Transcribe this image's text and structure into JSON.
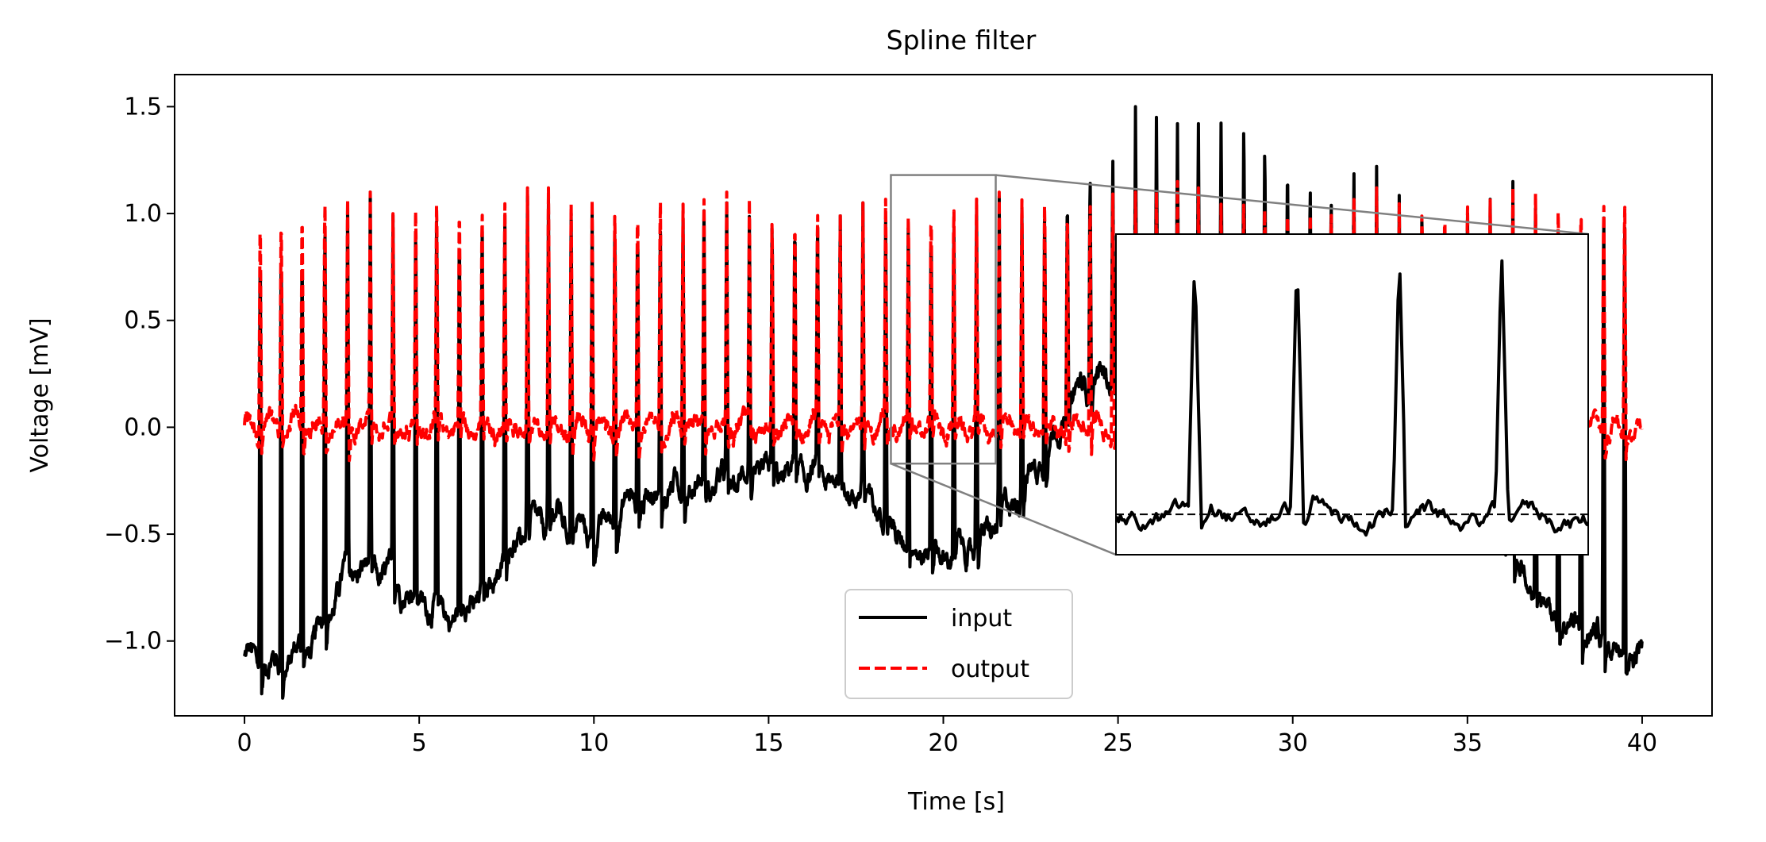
{
  "chart_data": {
    "type": "line",
    "title": "Spline filter",
    "xlabel": "Time [s]",
    "ylabel": "Voltage [mV]",
    "xlim": [
      -2,
      42
    ],
    "ylim": [
      -1.35,
      1.65
    ],
    "xticks": [
      0,
      5,
      10,
      15,
      20,
      25,
      30,
      35,
      40
    ],
    "xtick_labels": [
      "0",
      "5",
      "10",
      "15",
      "20",
      "25",
      "30",
      "35",
      "40"
    ],
    "yticks": [
      -1.0,
      -0.5,
      0.0,
      0.5,
      1.0,
      1.5
    ],
    "ytick_labels": [
      "−1.0",
      "−0.5",
      "0.0",
      "0.5",
      "1.0",
      "1.5"
    ],
    "grid": false,
    "legend_position": "lower-center",
    "colors": {
      "input": "#000000",
      "output": "#ff0000",
      "zoom_box": "#808080"
    },
    "series": [
      {
        "name": "input",
        "style": "solid",
        "baseline": {
          "x": [
            0,
            1,
            2,
            3,
            4,
            5,
            6,
            7,
            8,
            9,
            10,
            11,
            12,
            13,
            14,
            15,
            16,
            17,
            18,
            19,
            20,
            21,
            22,
            23,
            24,
            25,
            26,
            27,
            28,
            29,
            30,
            31,
            32,
            33,
            34,
            35,
            36,
            37,
            38,
            39,
            40
          ],
          "y": [
            -1.08,
            -1.12,
            -1.0,
            -0.65,
            -0.68,
            -0.8,
            -0.88,
            -0.75,
            -0.48,
            -0.42,
            -0.52,
            -0.35,
            -0.3,
            -0.28,
            -0.25,
            -0.22,
            -0.2,
            -0.25,
            -0.35,
            -0.55,
            -0.6,
            -0.55,
            -0.35,
            -0.1,
            0.2,
            0.25,
            0.3,
            0.3,
            0.25,
            0.2,
            0.15,
            0.05,
            0.0,
            -0.1,
            -0.2,
            -0.35,
            -0.5,
            -0.8,
            -0.95,
            -1.0,
            -1.05
          ]
        },
        "spike_times": [
          0.45,
          1.05,
          1.65,
          2.3,
          2.95,
          3.6,
          4.25,
          4.9,
          5.5,
          6.15,
          6.8,
          7.45,
          8.1,
          8.7,
          9.35,
          9.95,
          10.6,
          11.25,
          11.9,
          12.55,
          13.15,
          13.8,
          14.45,
          15.1,
          15.75,
          16.4,
          17.05,
          17.7,
          18.35,
          19.0,
          19.65,
          20.3,
          20.95,
          21.6,
          22.25,
          22.9,
          23.55,
          24.2,
          24.85,
          25.5,
          26.1,
          26.7,
          27.3,
          27.95,
          28.6,
          29.2,
          29.85,
          30.5,
          31.1,
          31.75,
          32.4,
          33.05,
          33.7,
          34.35,
          35.0,
          35.65,
          36.3,
          36.95,
          37.6,
          38.25,
          38.9,
          39.5
        ],
        "spike_peaks": [
          1.05,
          1.05,
          1.05,
          1.1,
          1.12,
          1.1,
          1.08,
          1.1,
          1.15,
          1.1,
          1.1,
          1.08,
          1.08,
          1.08,
          1.08,
          1.1,
          1.05,
          1.05,
          1.05,
          1.05,
          1.08,
          1.05,
          1.05,
          1.05,
          1.05,
          1.05,
          1.05,
          1.05,
          1.05,
          1.1,
          1.08,
          1.1,
          1.1,
          1.08,
          1.1,
          1.1,
          1.15,
          1.25,
          1.3,
          1.5,
          1.45,
          1.42,
          1.42,
          1.48,
          1.5,
          1.38,
          1.3,
          1.2,
          1.15,
          1.25,
          1.22,
          1.15,
          1.1,
          1.12,
          1.15,
          1.15,
          1.15,
          1.12,
          1.12,
          1.15,
          1.2,
          1.15
        ]
      },
      {
        "name": "output",
        "style": "dashed",
        "baseline_mean": 0.0,
        "spike_times": [
          0.45,
          1.05,
          1.65,
          2.3,
          2.95,
          3.6,
          4.25,
          4.9,
          5.5,
          6.15,
          6.8,
          7.45,
          8.1,
          8.7,
          9.35,
          9.95,
          10.6,
          11.25,
          11.9,
          12.55,
          13.15,
          13.8,
          14.45,
          15.1,
          15.75,
          16.4,
          17.05,
          17.7,
          18.35,
          19.0,
          19.65,
          20.3,
          20.95,
          21.6,
          22.25,
          22.9,
          23.55,
          24.2,
          24.85,
          25.5,
          26.1,
          26.7,
          27.3,
          27.95,
          28.6,
          29.2,
          29.85,
          30.5,
          31.1,
          31.75,
          32.4,
          33.05,
          33.7,
          34.35,
          35.0,
          35.65,
          36.3,
          36.95,
          37.6,
          38.25,
          38.9,
          39.5
        ],
        "spike_peaks": [
          1.07,
          1.07,
          1.1,
          1.15,
          1.12,
          1.1,
          1.05,
          1.12,
          1.15,
          1.12,
          1.1,
          1.1,
          1.12,
          1.12,
          1.1,
          1.12,
          1.1,
          1.12,
          1.17,
          1.1,
          1.12,
          1.1,
          1.12,
          1.05,
          1.05,
          1.1,
          1.05,
          1.05,
          1.12,
          1.08,
          1.1,
          1.12,
          1.12,
          1.1,
          1.12,
          1.15,
          1.12,
          1.15,
          1.15,
          1.1,
          1.1,
          1.15,
          1.12,
          1.1,
          1.15,
          1.12,
          1.15,
          1.1,
          1.1,
          1.12,
          1.12,
          1.1,
          1.1,
          1.12,
          1.15,
          1.12,
          1.12,
          1.15,
          1.12,
          1.15,
          1.15,
          1.15
        ]
      }
    ],
    "zoom_region": {
      "x": [
        18.5,
        21.5
      ],
      "y": [
        -0.17,
        1.18
      ]
    },
    "inset": {
      "xlim": [
        18.5,
        21.5
      ],
      "ylim": [
        -0.17,
        1.18
      ],
      "reference_line_y": 0.0
    }
  }
}
